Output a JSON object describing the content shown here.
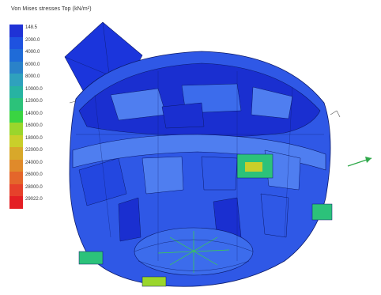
{
  "title": "Von Mises stresses Top (kN/m²)",
  "legend": {
    "entries": [
      {
        "label": "148.5",
        "color": "#1f32d6"
      },
      {
        "label": "2000.0",
        "color": "#1e52e0"
      },
      {
        "label": "4000.0",
        "color": "#1f6bd8"
      },
      {
        "label": "6000.0",
        "color": "#2a82c9"
      },
      {
        "label": "8000.0",
        "color": "#2fa1bd"
      },
      {
        "label": "10000.0",
        "color": "#27b3a2"
      },
      {
        "label": "12000.0",
        "color": "#2cc27a"
      },
      {
        "label": "14000.0",
        "color": "#3ad442"
      },
      {
        "label": "16000.0",
        "color": "#9ad62c"
      },
      {
        "label": "18000.0",
        "color": "#c9cf2a"
      },
      {
        "label": "22000.0",
        "color": "#d8a82a"
      },
      {
        "label": "24000.0",
        "color": "#e08a2a"
      },
      {
        "label": "26000.0",
        "color": "#e4662b"
      },
      {
        "label": "28000.0",
        "color": "#e6412b"
      },
      {
        "label": "29022.0",
        "color": "#e41f24"
      }
    ]
  },
  "colors": {
    "background": "#ffffff",
    "model_dark": "#1a2fd0",
    "model_mid": "#2f58e6",
    "model_light": "#4f7ef0",
    "mesh_line": "#0b1a6a",
    "stress_high": "#3ad442",
    "axis_arrow": "#2fa84a"
  }
}
